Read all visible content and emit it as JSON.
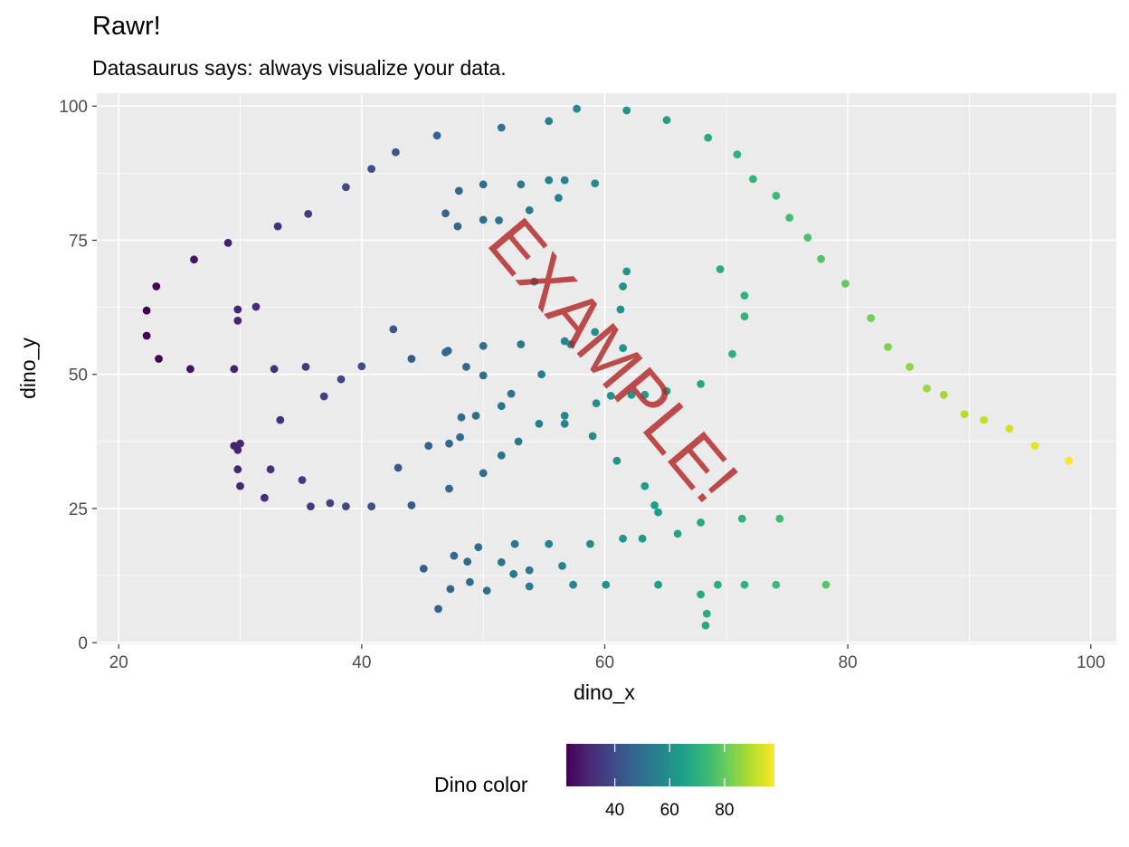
{
  "title": "Rawr!",
  "subtitle": "Datasaurus says: always visualize your data.",
  "watermark": "EXAMPLE!",
  "legend": {
    "title": "Dino color",
    "ticks": [
      "40",
      "60",
      "80"
    ],
    "tick_values": [
      40,
      60,
      80
    ],
    "range": [
      22.3,
      98.2
    ],
    "palette": [
      "#440154",
      "#482878",
      "#3E4A89",
      "#31688E",
      "#26828E",
      "#1F9E89",
      "#35B779",
      "#6DCD59",
      "#B4DE2C",
      "#FDE725"
    ]
  },
  "chart_data": {
    "type": "scatter",
    "title": "Rawr!",
    "subtitle": "Datasaurus says: always visualize your data.",
    "xlabel": "dino_x",
    "ylabel": "dino_y",
    "xlim": [
      18.2,
      102.1
    ],
    "ylim": [
      -0.3,
      102.4
    ],
    "xticks": [
      20,
      40,
      60,
      80,
      100
    ],
    "xtick_labels": [
      "20",
      "40",
      "60",
      "80",
      "100"
    ],
    "yticks": [
      0,
      25,
      50,
      75,
      100
    ],
    "ytick_labels": [
      "0",
      "25",
      "50",
      "75",
      "100"
    ],
    "grid": true,
    "color_variable": "dino_x",
    "points": [
      [
        55.4,
        97.2
      ],
      [
        51.5,
        96.0
      ],
      [
        46.2,
        94.5
      ],
      [
        42.8,
        91.4
      ],
      [
        40.8,
        88.3
      ],
      [
        38.7,
        84.9
      ],
      [
        35.6,
        79.9
      ],
      [
        33.1,
        77.6
      ],
      [
        29.0,
        74.5
      ],
      [
        26.2,
        71.4
      ],
      [
        23.1,
        66.4
      ],
      [
        22.3,
        61.9
      ],
      [
        22.3,
        57.2
      ],
      [
        23.3,
        52.9
      ],
      [
        25.9,
        51.0
      ],
      [
        29.5,
        51.0
      ],
      [
        32.8,
        51.0
      ],
      [
        35.4,
        51.4
      ],
      [
        40.0,
        51.5
      ],
      [
        44.1,
        52.9
      ],
      [
        46.9,
        54.1
      ],
      [
        50.0,
        55.3
      ],
      [
        53.1,
        55.6
      ],
      [
        56.7,
        56.2
      ],
      [
        59.2,
        57.9
      ],
      [
        61.3,
        62.1
      ],
      [
        61.5,
        66.4
      ],
      [
        61.8,
        69.2
      ],
      [
        57.7,
        99.5
      ],
      [
        61.8,
        99.2
      ],
      [
        65.1,
        97.4
      ],
      [
        68.5,
        94.1
      ],
      [
        70.9,
        91.0
      ],
      [
        72.2,
        86.4
      ],
      [
        74.1,
        83.3
      ],
      [
        75.2,
        79.2
      ],
      [
        76.7,
        75.5
      ],
      [
        77.8,
        71.5
      ],
      [
        79.8,
        66.9
      ],
      [
        81.9,
        60.5
      ],
      [
        83.3,
        55.1
      ],
      [
        85.1,
        51.4
      ],
      [
        86.5,
        47.4
      ],
      [
        87.9,
        46.2
      ],
      [
        89.6,
        42.6
      ],
      [
        91.2,
        41.5
      ],
      [
        93.3,
        39.9
      ],
      [
        95.4,
        36.7
      ],
      [
        98.2,
        33.9
      ],
      [
        56.7,
        86.2
      ],
      [
        59.2,
        85.6
      ],
      [
        55.4,
        86.2
      ],
      [
        53.1,
        85.4
      ],
      [
        50.0,
        85.4
      ],
      [
        48.0,
        84.2
      ],
      [
        46.9,
        80.0
      ],
      [
        47.9,
        77.6
      ],
      [
        50.0,
        78.8
      ],
      [
        51.3,
        78.7
      ],
      [
        53.8,
        80.6
      ],
      [
        56.2,
        82.9
      ],
      [
        69.5,
        69.6
      ],
      [
        71.5,
        64.7
      ],
      [
        71.5,
        60.8
      ],
      [
        70.5,
        53.8
      ],
      [
        67.9,
        48.2
      ],
      [
        65.1,
        46.9
      ],
      [
        62.2,
        46.2
      ],
      [
        59.3,
        44.6
      ],
      [
        56.7,
        42.3
      ],
      [
        54.6,
        40.8
      ],
      [
        52.9,
        37.5
      ],
      [
        51.5,
        34.9
      ],
      [
        50.0,
        31.6
      ],
      [
        47.2,
        28.7
      ],
      [
        44.1,
        25.6
      ],
      [
        40.8,
        25.4
      ],
      [
        38.7,
        25.4
      ],
      [
        37.4,
        26.0
      ],
      [
        35.8,
        25.4
      ],
      [
        35.1,
        30.3
      ],
      [
        32.5,
        32.3
      ],
      [
        29.8,
        32.3
      ],
      [
        29.8,
        35.9
      ],
      [
        30.0,
        37.1
      ],
      [
        29.8,
        60.0
      ],
      [
        29.8,
        62.1
      ],
      [
        31.3,
        62.6
      ],
      [
        29.5,
        36.7
      ],
      [
        32.0,
        27.0
      ],
      [
        30.0,
        29.2
      ],
      [
        43.0,
        32.6
      ],
      [
        45.5,
        36.7
      ],
      [
        48.1,
        38.3
      ],
      [
        49.4,
        42.3
      ],
      [
        51.5,
        44.1
      ],
      [
        52.3,
        46.4
      ],
      [
        50.0,
        49.8
      ],
      [
        48.6,
        51.4
      ],
      [
        47.1,
        54.4
      ],
      [
        42.6,
        58.4
      ],
      [
        33.3,
        41.5
      ],
      [
        36.9,
        45.9
      ],
      [
        38.3,
        49.1
      ],
      [
        45.1,
        13.8
      ],
      [
        47.6,
        16.2
      ],
      [
        48.7,
        15.1
      ],
      [
        49.6,
        17.8
      ],
      [
        51.5,
        15.0
      ],
      [
        52.6,
        18.4
      ],
      [
        53.8,
        13.5
      ],
      [
        55.4,
        18.4
      ],
      [
        56.5,
        14.3
      ],
      [
        58.8,
        18.4
      ],
      [
        61.5,
        19.4
      ],
      [
        63.1,
        19.4
      ],
      [
        63.3,
        29.2
      ],
      [
        64.1,
        25.6
      ],
      [
        64.4,
        24.3
      ],
      [
        66.0,
        20.3
      ],
      [
        67.9,
        22.4
      ],
      [
        71.3,
        23.1
      ],
      [
        74.4,
        23.1
      ],
      [
        69.3,
        10.8
      ],
      [
        71.5,
        10.8
      ],
      [
        74.1,
        10.8
      ],
      [
        78.2,
        10.8
      ],
      [
        68.3,
        3.2
      ],
      [
        68.4,
        5.4
      ],
      [
        67.9,
        9.0
      ],
      [
        64.4,
        10.8
      ],
      [
        60.1,
        10.8
      ],
      [
        57.4,
        10.8
      ],
      [
        53.8,
        10.5
      ],
      [
        50.3,
        9.7
      ],
      [
        48.9,
        11.3
      ],
      [
        47.3,
        10.0
      ],
      [
        46.3,
        6.3
      ],
      [
        52.5,
        12.8
      ],
      [
        61.0,
        33.9
      ],
      [
        63.3,
        46.2
      ],
      [
        57.2,
        55.6
      ],
      [
        47.2,
        37.1
      ],
      [
        48.2,
        42.0
      ],
      [
        60.5,
        46.0
      ],
      [
        61.5,
        54.9
      ],
      [
        59.0,
        38.5
      ],
      [
        54.8,
        50.0
      ],
      [
        56.7,
        40.8
      ],
      [
        54.2,
        67.3
      ]
    ]
  }
}
